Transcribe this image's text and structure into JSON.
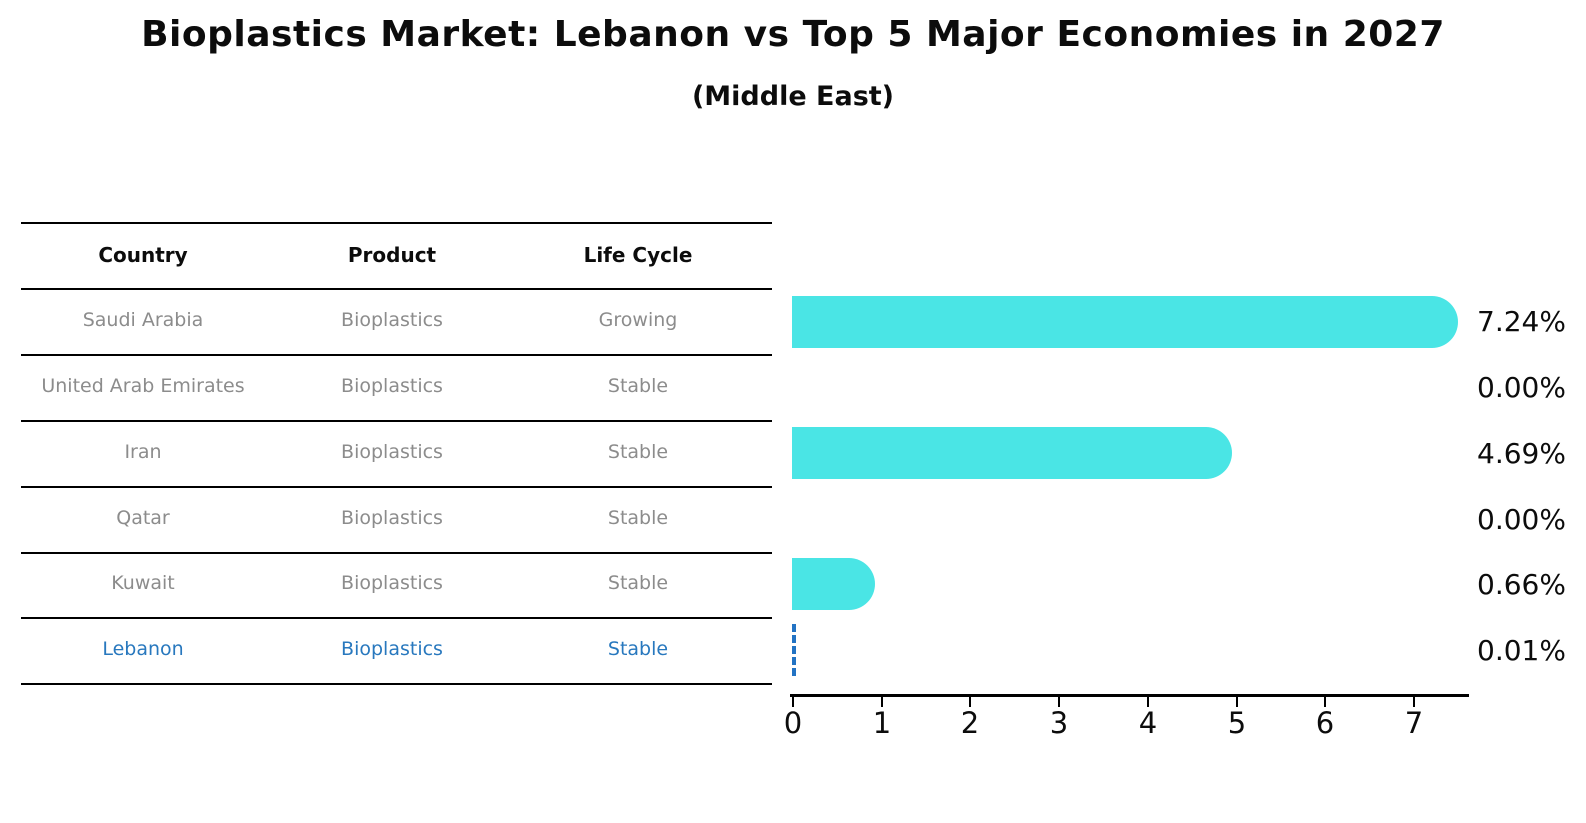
{
  "title": "Bioplastics Market: Lebanon vs Top 5 Major Economies in 2027",
  "subtitle": "(Middle East)",
  "table": {
    "headers": [
      "Country",
      "Product",
      "Life Cycle"
    ],
    "rows": [
      {
        "country": "Saudi Arabia",
        "product": "Bioplastics",
        "life_cycle": "Growing",
        "highlight": false
      },
      {
        "country": "United Arab Emirates",
        "product": "Bioplastics",
        "life_cycle": "Stable",
        "highlight": false
      },
      {
        "country": "Iran",
        "product": "Bioplastics",
        "life_cycle": "Stable",
        "highlight": false
      },
      {
        "country": "Qatar",
        "product": "Bioplastics",
        "life_cycle": "Stable",
        "highlight": false
      },
      {
        "country": "Kuwait",
        "product": "Bioplastics",
        "life_cycle": "Stable",
        "highlight": false
      },
      {
        "country": "Lebanon",
        "product": "Bioplastics",
        "life_cycle": "Stable",
        "highlight": true
      }
    ]
  },
  "chart_data": {
    "type": "bar",
    "orientation": "horizontal",
    "categories": [
      "Saudi Arabia",
      "United Arab Emirates",
      "Iran",
      "Qatar",
      "Kuwait",
      "Lebanon"
    ],
    "values": [
      7.24,
      0.0,
      4.69,
      0.0,
      0.66,
      0.01
    ],
    "value_labels": [
      "7.24%",
      "0.00%",
      "4.69%",
      "0.00%",
      "0.66%",
      "0.01%"
    ],
    "x_ticks": [
      0,
      1,
      2,
      3,
      4,
      5,
      6,
      7
    ],
    "xlim": [
      0,
      7.63
    ],
    "grid": false,
    "legend": "none",
    "bar_color": "#4ae5e5",
    "highlight_color": "#2878be",
    "highlight_index": 5
  }
}
